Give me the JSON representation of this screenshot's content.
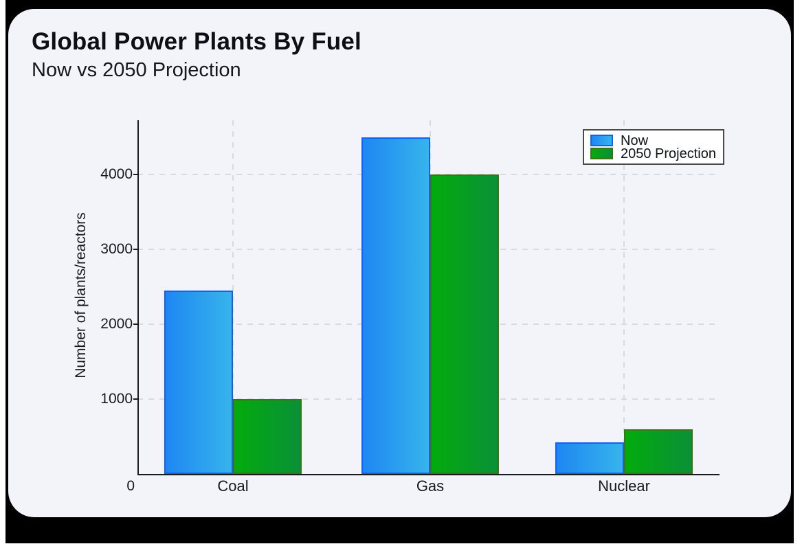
{
  "header": {
    "title": "Global Power Plants By Fuel",
    "subtitle": "Now vs 2050 Projection"
  },
  "chart_data": {
    "type": "bar",
    "title": "Global Power Plants By Fuel",
    "subtitle": "Now vs 2050 Projection",
    "categories": [
      "Coal",
      "Gas",
      "Nuclear"
    ],
    "series": [
      {
        "name": "Now",
        "values": [
          2450,
          4500,
          420
        ],
        "fill_start": "#1e87f2",
        "fill_end": "#36b4ec",
        "border": "#1460f0"
      },
      {
        "name": "2050 Projection",
        "values": [
          1000,
          4000,
          600
        ],
        "fill_start": "#03ab0d",
        "fill_end": "#0a9038",
        "border": "#3c7513"
      }
    ],
    "xlabel": "",
    "ylabel": "Number of plants/reactors",
    "yticks": [
      0,
      1000,
      2000,
      3000,
      4000
    ],
    "ylim": [
      0,
      4725
    ],
    "grid": {
      "style": "dashed",
      "horizontal": true,
      "vertical": true
    },
    "legend": {
      "position": "top-right",
      "entries": [
        "Now",
        "2050 Projection"
      ]
    }
  },
  "colors": {
    "page_background": "#ffffff",
    "frame_background": "#000000",
    "card_background": "#f2f4f9",
    "text": "#121417",
    "axis": "#1b1b1b",
    "gridline": "#d8dade",
    "legend_border": "#4a4a4a",
    "legend_background": "#ffffff"
  }
}
